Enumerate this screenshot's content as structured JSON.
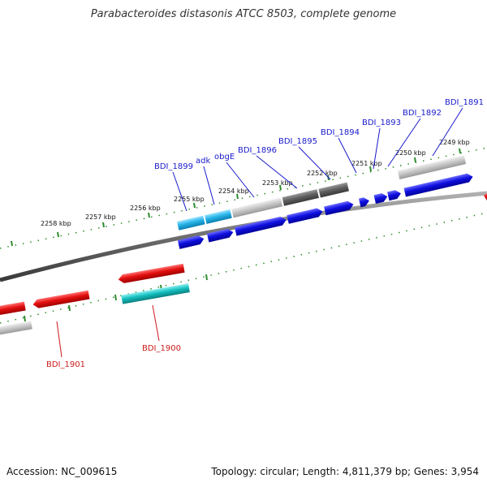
{
  "title": "Parabacteroides distasonis ATCC 8503, complete genome",
  "footer": {
    "accession": "Accession: NC_009615",
    "summary": "Topology: circular; Length: 4,811,379 bp; Genes: 3,954"
  },
  "colors": {
    "backbone": "#6e6e6e",
    "tick": "#2e8b2e",
    "forward_label": "#1a1acc",
    "reverse_label": "#cc1a1a",
    "blue": "#1010e0",
    "light_blue": "#28b4e8",
    "light_gray": "#c8c8c8",
    "dark_gray": "#606060",
    "red": "#e41010",
    "teal": "#16c0c0"
  },
  "ticks": [
    "2258 kbp",
    "2257 kbp",
    "2256 kbp",
    "2255 kbp",
    "2254 kbp",
    "2253 kbp",
    "2252 kbp",
    "2251 kbp",
    "2250 kbp",
    "2249 kbp"
  ],
  "forward_labels": [
    "BDI_1899",
    "adk",
    "obgE",
    "BDI_1896",
    "BDI_1895",
    "BDI_1894",
    "BDI_1893",
    "BDI_1892",
    "BDI_1891"
  ],
  "reverse_labels": [
    "BDI_1901",
    "BDI_1900"
  ]
}
